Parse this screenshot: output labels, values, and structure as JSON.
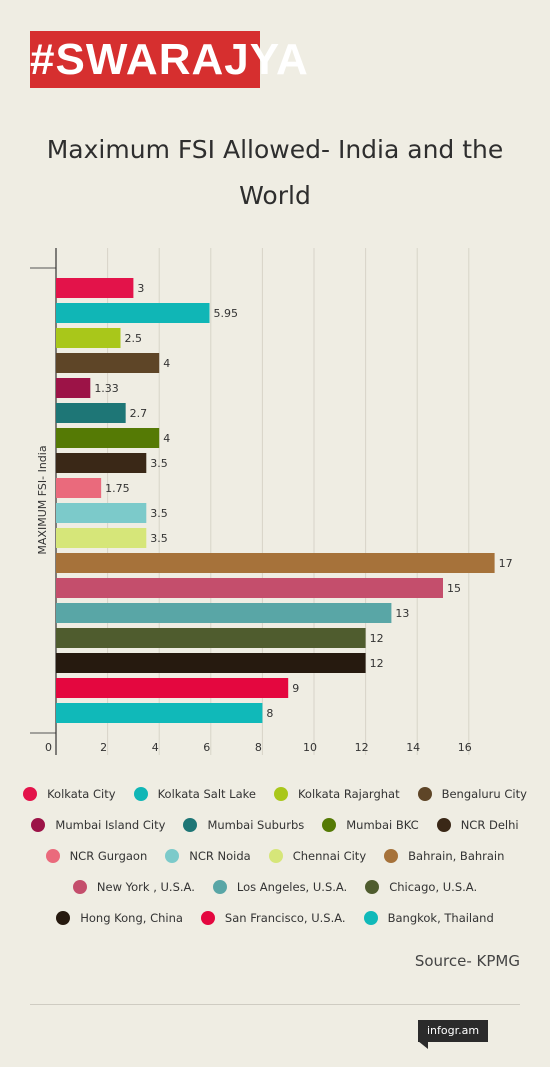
{
  "header": {
    "logo_text": "#SWARAJYA"
  },
  "chart_data": {
    "type": "bar",
    "orientation": "horizontal",
    "title": "Maximum FSI Allowed- India and the World",
    "ylabel": "MAXIMUM FSI- India",
    "xlabel": "",
    "xlim": [
      0,
      17.5
    ],
    "xticks": [
      "0",
      "2",
      "4",
      "6",
      "8",
      "10",
      "12",
      "14",
      "16"
    ],
    "grid": true,
    "legend_position": "bottom",
    "categories": [
      "Kolkata City",
      "Kolkata Salt Lake",
      "Kolkata Rajarghat",
      "Bengaluru City",
      "Mumbai Island City",
      "Mumbai Suburbs",
      "Mumbai BKC",
      "NCR Delhi",
      "NCR Gurgaon",
      "NCR Noida",
      "Chennai City",
      "Bahrain, Bahrain",
      "New York , U.S.A.",
      "Los Angeles, U.S.A.",
      "Chicago, U.S.A.",
      "Hong Kong, China",
      "San Francisco, U.S.A.",
      "Bangkok, Thailand"
    ],
    "values": [
      3,
      5.95,
      2.5,
      4,
      1.33,
      2.7,
      4,
      3.5,
      1.75,
      3.5,
      3.5,
      17,
      15,
      13,
      12,
      12,
      9,
      8
    ],
    "value_labels": [
      "3",
      "5.95",
      "2.5",
      "4",
      "1.33",
      "2.7",
      "4",
      "3.5",
      "1.75",
      "3.5",
      "3.5",
      "17",
      "15",
      "13",
      "12",
      "12",
      "9",
      "8"
    ],
    "colors": [
      "#e3134a",
      "#10b6b6",
      "#a9c71a",
      "#5e4527",
      "#9c1347",
      "#1e7676",
      "#557a05",
      "#3a2817",
      "#ea6a7c",
      "#7ccaca",
      "#d6e679",
      "#a6723a",
      "#c44e6c",
      "#59a6a6",
      "#4f5c2e",
      "#261a0f",
      "#e4073f",
      "#10b9b9"
    ]
  },
  "legend_rows": [
    [
      0,
      1,
      2,
      3
    ],
    [
      4,
      5,
      6,
      7
    ],
    [
      8,
      9,
      10,
      11
    ],
    [
      12,
      13,
      14
    ],
    [
      15,
      16,
      17
    ]
  ],
  "footer": {
    "source": "Source- KPMG",
    "badge": "infogr.am"
  }
}
